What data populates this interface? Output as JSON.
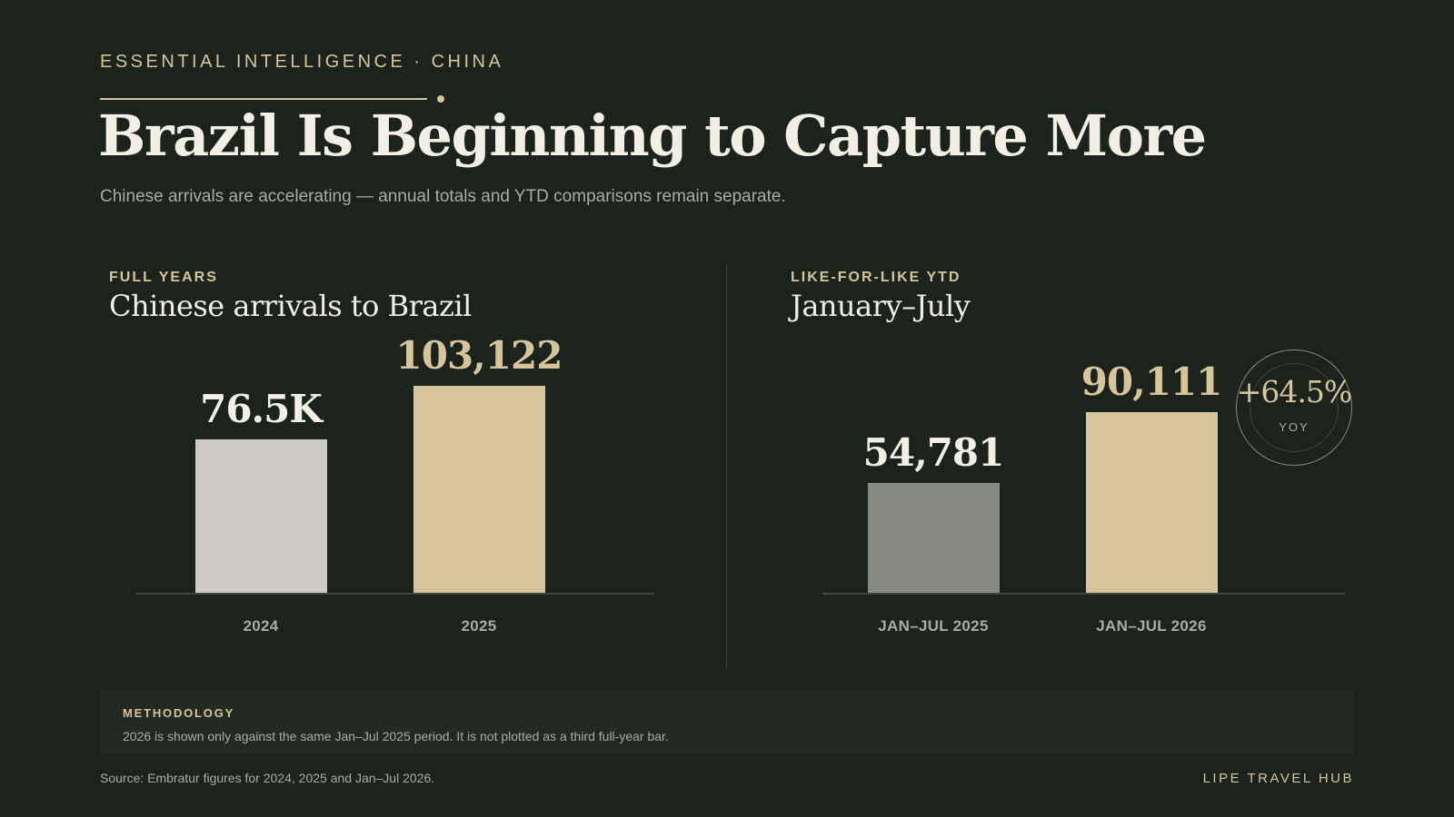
{
  "header": {
    "eyebrow": "ESSENTIAL INTELLIGENCE · CHINA",
    "title": "Brazil Is Beginning to Capture More",
    "subtitle": "Chinese arrivals are accelerating — annual totals and YTD comparisons remain separate."
  },
  "chart_data": [
    {
      "type": "bar",
      "kicker": "FULL YEARS",
      "title": "Chinese arrivals to Brazil",
      "categories": [
        "2024",
        "2025"
      ],
      "values": [
        76500,
        103122
      ],
      "value_labels": [
        "76.5K",
        "103,122"
      ],
      "colors": [
        "#cdcbc3",
        "#d6c49c"
      ],
      "label_colors": [
        "#f3efe4",
        "#d6c49c"
      ],
      "ylim": [
        0,
        103122
      ]
    },
    {
      "type": "bar",
      "kicker": "LIKE-FOR-LIKE YTD",
      "title": "January–July",
      "categories": [
        "JAN–JUL 2025",
        "JAN–JUL 2026"
      ],
      "values": [
        54781,
        90111
      ],
      "value_labels": [
        "54,781",
        "90,111"
      ],
      "colors": [
        "#878a80",
        "#d6c49c"
      ],
      "label_colors": [
        "#f3efe4",
        "#d6c49c"
      ],
      "ylim": [
        0,
        103122
      ],
      "annotation": {
        "value": "+64.5%",
        "label": "YOY"
      }
    }
  ],
  "methodology": {
    "label": "METHODOLOGY",
    "text": "2026 is shown only against the same Jan–Jul 2025 period. It is not plotted as a third full-year bar."
  },
  "footer": {
    "source": "Source: Embratur figures for 2024, 2025 and Jan–Jul 2026.",
    "brand": "LIPE TRAVEL HUB"
  }
}
